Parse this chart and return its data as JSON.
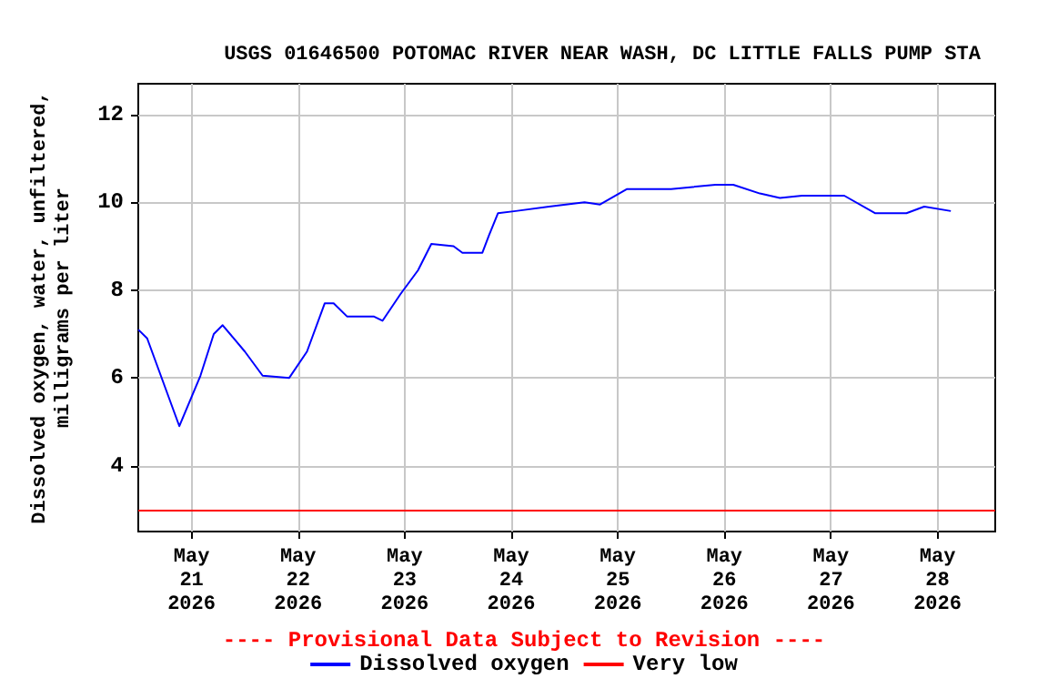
{
  "chart_data": {
    "type": "line",
    "title": "USGS 01646500 POTOMAC RIVER NEAR WASH, DC LITTLE FALLS PUMP STA",
    "ylabel": "Dissolved oxygen, water, unfiltered,\nmilligrams per liter",
    "x": [
      "2026-05-20T12:00",
      "2026-05-20T14:00",
      "2026-05-20T21:15",
      "2026-05-21T02:00",
      "2026-05-21T05:00",
      "2026-05-21T07:00",
      "2026-05-21T12:00",
      "2026-05-21T16:00",
      "2026-05-21T22:00",
      "2026-05-22T02:00",
      "2026-05-22T06:00",
      "2026-05-22T08:00",
      "2026-05-22T11:00",
      "2026-05-22T17:00",
      "2026-05-22T19:00",
      "2026-05-22T23:00",
      "2026-05-23T03:00",
      "2026-05-23T06:00",
      "2026-05-23T11:00",
      "2026-05-23T13:00",
      "2026-05-23T17:30",
      "2026-05-23T19:00",
      "2026-05-23T21:00",
      "2026-05-24T01:00",
      "2026-05-24T08:30",
      "2026-05-24T16:30",
      "2026-05-24T20:00",
      "2026-05-25T02:00",
      "2026-05-25T12:00",
      "2026-05-25T22:00",
      "2026-05-26T02:00",
      "2026-05-26T08:00",
      "2026-05-26T12:30",
      "2026-05-26T17:30",
      "2026-05-27T03:00",
      "2026-05-27T10:00",
      "2026-05-27T17:00",
      "2026-05-27T21:00",
      "2026-05-28T03:00"
    ],
    "series": [
      {
        "name": "Dissolved oxygen",
        "color": "#0000ff",
        "values": [
          7.1,
          6.9,
          4.9,
          6.05,
          7.0,
          7.2,
          6.6,
          6.05,
          6.0,
          6.6,
          7.7,
          7.7,
          7.4,
          7.4,
          7.3,
          7.9,
          8.45,
          9.05,
          9.0,
          8.85,
          8.85,
          9.25,
          9.75,
          9.8,
          9.9,
          10.0,
          9.95,
          10.3,
          10.3,
          10.4,
          10.4,
          10.2,
          10.1,
          10.15,
          10.15,
          9.75,
          9.75,
          9.9,
          9.8
        ]
      }
    ],
    "xlim": [
      "2026-05-20T12:00",
      "2026-05-28T13:00"
    ],
    "xticks": [
      {
        "value": "2026-05-21",
        "label": "May\n21\n2026"
      },
      {
        "value": "2026-05-22",
        "label": "May\n22\n2026"
      },
      {
        "value": "2026-05-23",
        "label": "May\n23\n2026"
      },
      {
        "value": "2026-05-24",
        "label": "May\n24\n2026"
      },
      {
        "value": "2026-05-25",
        "label": "May\n25\n2026"
      },
      {
        "value": "2026-05-26",
        "label": "May\n26\n2026"
      },
      {
        "value": "2026-05-27",
        "label": "May\n27\n2026"
      },
      {
        "value": "2026-05-28",
        "label": "May\n28\n2026"
      }
    ],
    "ylim": [
      2.5,
      12.7
    ],
    "yticks": [
      4,
      6,
      8,
      10,
      12
    ],
    "ref_lines": [
      {
        "axis": "y",
        "value": 3,
        "label": "Very low",
        "color": "#ff0000"
      }
    ],
    "annotations": [
      "---- Provisional Data Subject to Revision ----"
    ],
    "grid": true,
    "legend": "bottom",
    "marker": "none",
    "line_style": "solid"
  }
}
